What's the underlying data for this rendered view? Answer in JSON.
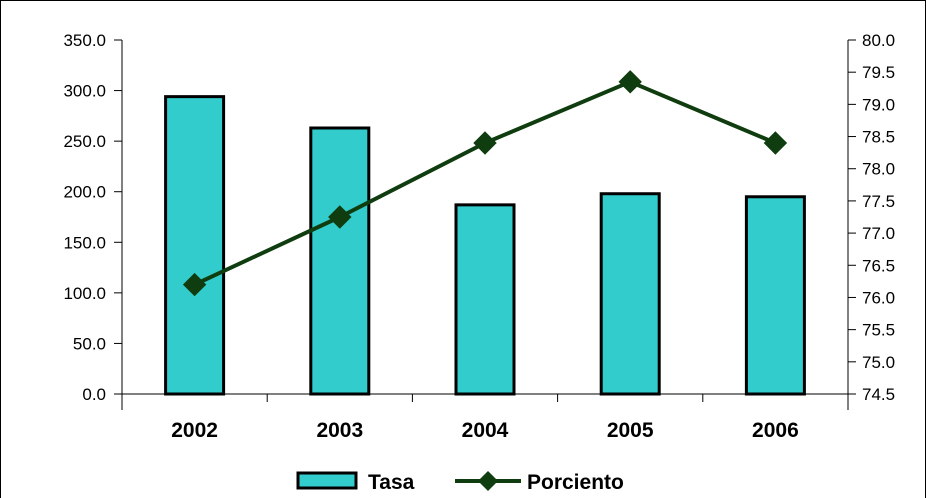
{
  "chart_data": {
    "type": "bar+line",
    "categories": [
      "2002",
      "2003",
      "2004",
      "2005",
      "2006"
    ],
    "series": [
      {
        "name": "Tasa",
        "type": "bar",
        "axis": "left",
        "color": "#33CCCC",
        "values": [
          294.0,
          263.0,
          187.0,
          198.0,
          195.0
        ]
      },
      {
        "name": "Porciento",
        "type": "line",
        "axis": "right",
        "color": "#0F3D0F",
        "marker": "diamond",
        "values": [
          76.2,
          77.25,
          78.4,
          79.35,
          78.4
        ]
      }
    ],
    "y_left": {
      "range": [
        0,
        350
      ],
      "ticks": [
        "0.0",
        "50.0",
        "100.0",
        "150.0",
        "200.0",
        "250.0",
        "300.0",
        "350.0"
      ]
    },
    "y_right": {
      "range": [
        74.5,
        80.0
      ],
      "ticks": [
        "74.5",
        "75.0",
        "75.5",
        "76.0",
        "76.5",
        "77.0",
        "77.5",
        "78.0",
        "78.5",
        "79.0",
        "79.5",
        "80.0"
      ]
    },
    "grid": false,
    "legend_position": "bottom"
  }
}
